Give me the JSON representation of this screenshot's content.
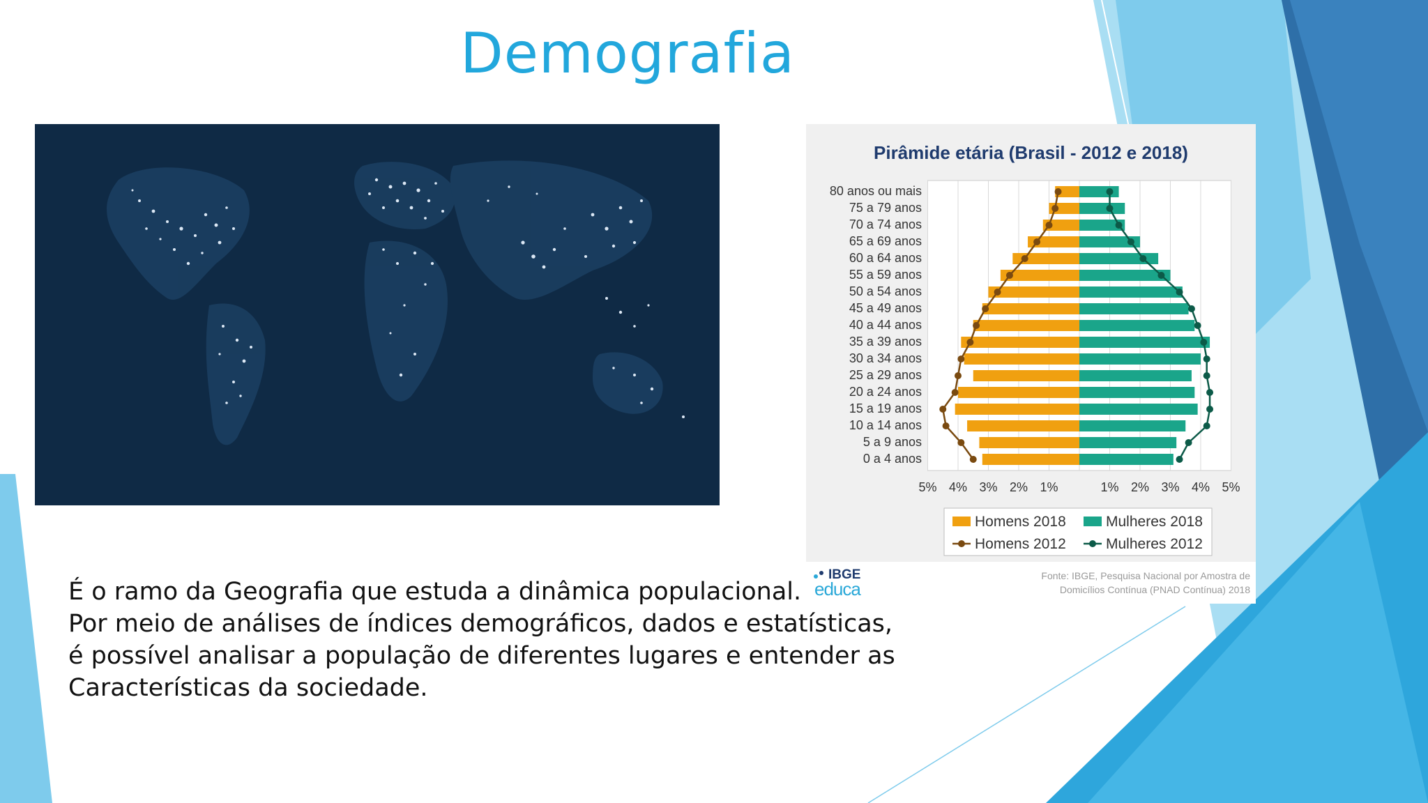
{
  "slide": {
    "title": "Demografia",
    "paragraph_lines": [
      "É o ramo da Geografia que estuda a dinâmica populacional.",
      "Por meio de análises de índices demográficos, dados e estatísticas,",
      "é possível analisar a população de diferentes lugares e entender as",
      "Características da sociedade."
    ]
  },
  "map_image": {
    "icon": "world-map-night-lights",
    "background_color": "#0f2a45"
  },
  "footer": {
    "logo_top": "IBGE",
    "logo_bottom": "educa",
    "source_line1": "Fonte: IBGE, Pesquisa Nacional por Amostra de",
    "source_line2": "Domicílios Contínua (PNAD Contínua) 2018"
  },
  "theme": {
    "accent": "#22a7dc",
    "bar_men": "#f0a010",
    "bar_women": "#1aa58a",
    "line_men": "#7a4a10",
    "line_women": "#0c5a48"
  },
  "chart_data": {
    "type": "bar",
    "title": "Pirâmide etária (Brasil - 2012 e 2018)",
    "categories": [
      "80 anos ou mais",
      "75 a 79 anos",
      "70 a 74 anos",
      "65 a 69 anos",
      "60 a 64 anos",
      "55 a 59 anos",
      "50 a 54 anos",
      "45 a 49 anos",
      "40 a 44 anos",
      "35 a 39 anos",
      "30 a 34 anos",
      "25 a 29 anos",
      "20 a 24 anos",
      "15 a 19 anos",
      "10 a 14 anos",
      "5 a 9 anos",
      "0 a 4 anos"
    ],
    "series": [
      {
        "name": "Homens 2018",
        "kind": "bar",
        "side": "left",
        "values": [
          0.8,
          1.0,
          1.2,
          1.7,
          2.2,
          2.6,
          3.0,
          3.2,
          3.5,
          3.9,
          3.8,
          3.5,
          4.0,
          4.1,
          3.7,
          3.3,
          3.2
        ]
      },
      {
        "name": "Mulheres 2018",
        "kind": "bar",
        "side": "right",
        "values": [
          1.3,
          1.5,
          1.5,
          2.0,
          2.6,
          3.0,
          3.4,
          3.6,
          3.8,
          4.3,
          4.0,
          3.7,
          3.8,
          3.9,
          3.5,
          3.2,
          3.1
        ]
      },
      {
        "name": "Homens 2012",
        "kind": "line",
        "side": "left",
        "values": [
          0.7,
          0.8,
          1.0,
          1.4,
          1.8,
          2.3,
          2.7,
          3.1,
          3.4,
          3.6,
          3.9,
          4.0,
          4.1,
          4.5,
          4.4,
          3.9,
          3.5
        ]
      },
      {
        "name": "Mulheres 2012",
        "kind": "line",
        "side": "right",
        "values": [
          1.0,
          1.0,
          1.3,
          1.7,
          2.1,
          2.7,
          3.3,
          3.7,
          3.9,
          4.1,
          4.2,
          4.2,
          4.3,
          4.3,
          4.2,
          3.6,
          3.3
        ]
      }
    ],
    "x_ticks": [
      "5%",
      "4%",
      "3%",
      "2%",
      "1%",
      "",
      "1%",
      "2%",
      "3%",
      "4%",
      "5%"
    ],
    "xlim": [
      -5,
      5
    ],
    "grid": true,
    "legend_placement": "bottom"
  }
}
